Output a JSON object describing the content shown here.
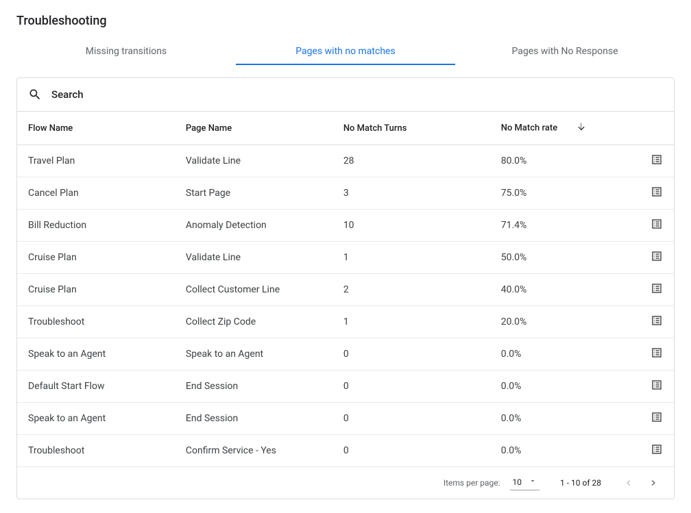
{
  "title": "Troubleshooting",
  "tabs": [
    {
      "label": "Missing transitions",
      "active": false
    },
    {
      "label": "Pages with no matches",
      "active": true
    },
    {
      "label": "Pages with No Response",
      "active": false
    }
  ],
  "search": {
    "label": "Search"
  },
  "table": {
    "columns": {
      "flow": "Flow Name",
      "page": "Page Name",
      "turns": "No Match Turns",
      "rate": "No Match rate"
    },
    "sort_column": "rate",
    "sort_dir": "desc",
    "rows": [
      {
        "flow": "Travel Plan",
        "page": "Validate Line",
        "turns": "28",
        "rate": "80.0%"
      },
      {
        "flow": "Cancel Plan",
        "page": "Start Page",
        "turns": "3",
        "rate": "75.0%"
      },
      {
        "flow": "Bill Reduction",
        "page": "Anomaly Detection",
        "turns": "10",
        "rate": "71.4%"
      },
      {
        "flow": "Cruise Plan",
        "page": "Validate Line",
        "turns": "1",
        "rate": "50.0%"
      },
      {
        "flow": "Cruise Plan",
        "page": "Collect Customer Line",
        "turns": "2",
        "rate": "40.0%"
      },
      {
        "flow": "Troubleshoot",
        "page": "Collect Zip Code",
        "turns": "1",
        "rate": "20.0%"
      },
      {
        "flow": "Speak to an Agent",
        "page": "Speak to an Agent",
        "turns": "0",
        "rate": "0.0%"
      },
      {
        "flow": "Default Start Flow",
        "page": "End Session",
        "turns": "0",
        "rate": "0.0%"
      },
      {
        "flow": "Speak to an Agent",
        "page": "End Session",
        "turns": "0",
        "rate": "0.0%"
      },
      {
        "flow": "Troubleshoot",
        "page": "Confirm Service - Yes",
        "turns": "0",
        "rate": "0.0%"
      }
    ]
  },
  "pagination": {
    "items_per_page_label": "Items per page:",
    "page_size": "10",
    "range": "1 - 10 of 28",
    "prev_disabled": true,
    "next_disabled": false
  }
}
